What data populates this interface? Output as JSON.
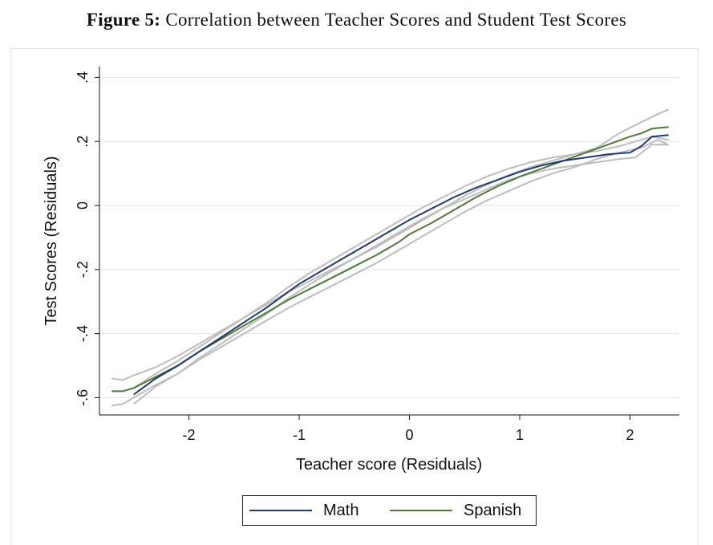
{
  "figure": {
    "label": "Figure 5:",
    "caption": "Correlation between Teacher Scores and Student Test Scores"
  },
  "chart_data": {
    "type": "line",
    "title": "",
    "xlabel": "Teacher score (Residuals)",
    "ylabel": "Test Scores (Residuals)",
    "xlim": [
      -2.75,
      2.45
    ],
    "ylim": [
      -0.66,
      0.44
    ],
    "x_ticks": [
      -2,
      -1,
      0,
      1,
      2
    ],
    "x_tick_labels": [
      "-2",
      "-1",
      "0",
      "1",
      "2"
    ],
    "y_ticks": [
      -0.6,
      -0.4,
      -0.2,
      0,
      0.2,
      0.4
    ],
    "y_tick_labels": [
      "-.6",
      "-.4",
      "-.2",
      "0",
      ".2",
      ".4"
    ],
    "grid": true,
    "legend_position": "bottom",
    "series": [
      {
        "name": "Math",
        "color": "#1f3a6e",
        "x": [
          -2.5,
          -2.3,
          -2.1,
          -1.9,
          -1.7,
          -1.5,
          -1.3,
          -1.1,
          -1.0,
          -0.8,
          -0.6,
          -0.4,
          -0.2,
          0.0,
          0.2,
          0.4,
          0.6,
          0.8,
          1.0,
          1.2,
          1.4,
          1.6,
          1.8,
          2.0,
          2.1,
          2.2,
          2.35
        ],
        "y": [
          -0.59,
          -0.54,
          -0.5,
          -0.455,
          -0.41,
          -0.365,
          -0.32,
          -0.27,
          -0.245,
          -0.205,
          -0.165,
          -0.125,
          -0.085,
          -0.045,
          -0.01,
          0.025,
          0.055,
          0.08,
          0.105,
          0.125,
          0.14,
          0.15,
          0.16,
          0.165,
          0.185,
          0.215,
          0.22
        ]
      },
      {
        "name": "Spanish",
        "color": "#4f7a3a",
        "x": [
          -2.7,
          -2.6,
          -2.5,
          -2.3,
          -2.1,
          -1.9,
          -1.7,
          -1.5,
          -1.3,
          -1.1,
          -0.9,
          -0.7,
          -0.5,
          -0.3,
          -0.1,
          0.0,
          0.2,
          0.4,
          0.6,
          0.8,
          1.0,
          1.2,
          1.4,
          1.6,
          1.8,
          2.0,
          2.1,
          2.2,
          2.35
        ],
        "y": [
          -0.58,
          -0.58,
          -0.57,
          -0.535,
          -0.5,
          -0.455,
          -0.415,
          -0.375,
          -0.335,
          -0.295,
          -0.26,
          -0.225,
          -0.19,
          -0.155,
          -0.115,
          -0.09,
          -0.055,
          -0.015,
          0.025,
          0.06,
          0.09,
          0.115,
          0.14,
          0.165,
          0.19,
          0.215,
          0.225,
          0.24,
          0.245
        ]
      }
    ],
    "confidence_bands": [
      {
        "series": "Math",
        "color": "#bdbdbd",
        "x": [
          -2.5,
          -2.3,
          -2.1,
          -1.9,
          -1.7,
          -1.5,
          -1.3,
          -1.1,
          -0.9,
          -0.7,
          -0.5,
          -0.3,
          -0.1,
          0.1,
          0.3,
          0.5,
          0.7,
          0.9,
          1.1,
          1.3,
          1.5,
          1.7,
          1.9,
          2.05,
          2.2,
          2.35
        ],
        "upper": [
          -0.57,
          -0.525,
          -0.485,
          -0.44,
          -0.395,
          -0.35,
          -0.305,
          -0.255,
          -0.21,
          -0.17,
          -0.13,
          -0.09,
          -0.05,
          -0.01,
          0.025,
          0.06,
          0.09,
          0.115,
          0.135,
          0.15,
          0.16,
          0.17,
          0.185,
          0.2,
          0.215,
          0.205
        ],
        "lower": [
          -0.62,
          -0.565,
          -0.525,
          -0.475,
          -0.43,
          -0.385,
          -0.34,
          -0.29,
          -0.245,
          -0.205,
          -0.165,
          -0.125,
          -0.085,
          -0.045,
          -0.01,
          0.02,
          0.05,
          0.08,
          0.1,
          0.115,
          0.125,
          0.135,
          0.145,
          0.15,
          0.19,
          0.19
        ]
      },
      {
        "series": "Spanish",
        "color": "#bdbdbd",
        "x": [
          -2.7,
          -2.6,
          -2.5,
          -2.3,
          -2.1,
          -1.9,
          -1.7,
          -1.5,
          -1.3,
          -1.1,
          -0.9,
          -0.7,
          -0.5,
          -0.3,
          -0.1,
          0.1,
          0.3,
          0.5,
          0.7,
          0.9,
          1.1,
          1.3,
          1.5,
          1.7,
          1.9,
          2.1,
          2.25,
          2.35
        ],
        "upper": [
          -0.54,
          -0.545,
          -0.53,
          -0.505,
          -0.47,
          -0.43,
          -0.39,
          -0.35,
          -0.31,
          -0.27,
          -0.235,
          -0.2,
          -0.165,
          -0.13,
          -0.09,
          -0.05,
          -0.01,
          0.03,
          0.065,
          0.095,
          0.12,
          0.14,
          0.16,
          0.18,
          0.225,
          0.26,
          0.285,
          0.3
        ],
        "lower": [
          -0.625,
          -0.62,
          -0.6,
          -0.56,
          -0.525,
          -0.48,
          -0.44,
          -0.4,
          -0.36,
          -0.32,
          -0.285,
          -0.25,
          -0.215,
          -0.18,
          -0.14,
          -0.1,
          -0.06,
          -0.02,
          0.015,
          0.045,
          0.075,
          0.1,
          0.12,
          0.145,
          0.165,
          0.18,
          0.205,
          0.19
        ]
      }
    ]
  },
  "legend": {
    "items": [
      {
        "label": "Math",
        "color": "#1f3a6e"
      },
      {
        "label": "Spanish",
        "color": "#4f7a3a"
      }
    ]
  }
}
